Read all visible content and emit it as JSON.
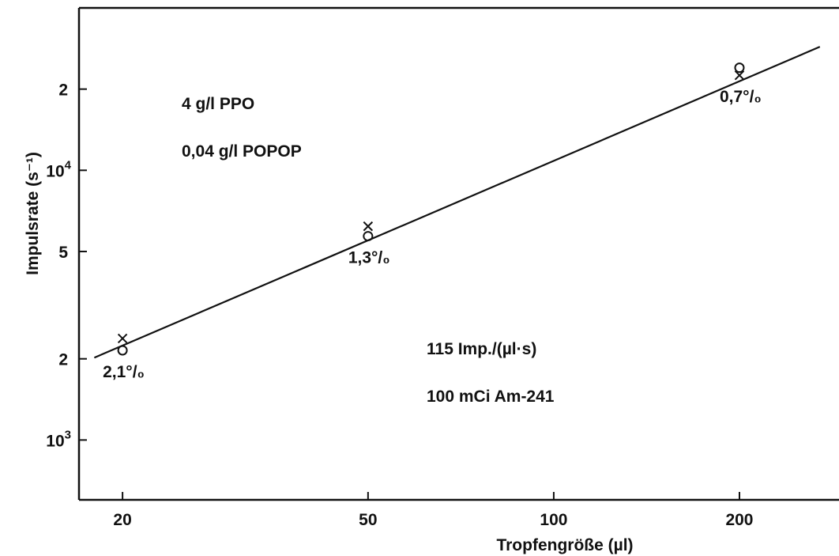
{
  "chart_data": {
    "type": "scatter",
    "xscale": "log",
    "yscale": "log",
    "xlabel": "Tropfengröße (µl)",
    "ylabel": "Impulsrate (s⁻¹)",
    "xlim": [
      17,
      290
    ],
    "ylim": [
      600,
      40000
    ],
    "xticks": [
      {
        "value": 20,
        "label": "20"
      },
      {
        "value": 50,
        "label": "50"
      },
      {
        "value": 100,
        "label": "100"
      },
      {
        "value": 200,
        "label": "200"
      }
    ],
    "yticks": [
      {
        "value": 1000,
        "base": "10",
        "exp": "3"
      },
      {
        "value": 2000,
        "label": "2"
      },
      {
        "value": 5000,
        "label": "5"
      },
      {
        "value": 10000,
        "base": "10",
        "exp": "4"
      },
      {
        "value": 20000,
        "label": "2"
      }
    ],
    "series": [
      {
        "marker": "circle",
        "points": [
          {
            "x": 20,
            "y": 2150
          },
          {
            "x": 50,
            "y": 5700
          },
          {
            "x": 200,
            "y": 24000
          }
        ]
      },
      {
        "marker": "cross",
        "points": [
          {
            "x": 20,
            "y": 2380
          },
          {
            "x": 50,
            "y": 6200
          },
          {
            "x": 200,
            "y": 22500
          }
        ]
      }
    ],
    "fit_line": {
      "x": [
        18,
        270
      ],
      "y": [
        2020,
        28700
      ]
    },
    "point_labels": [
      {
        "x": 20,
        "y": 2150,
        "text": "2,1°/₀"
      },
      {
        "x": 50,
        "y": 5700,
        "text": "1,3°/₀"
      },
      {
        "x": 200,
        "y": 22500,
        "text": "0,7°/₀"
      }
    ],
    "annotations": [
      {
        "text": "4 g/l PPO"
      },
      {
        "text": "0,04 g/l POPOP"
      },
      {
        "text": "115 Imp./(µl·s)"
      },
      {
        "text": "100 mCi Am-241"
      }
    ],
    "grid": false,
    "legend": "none"
  }
}
